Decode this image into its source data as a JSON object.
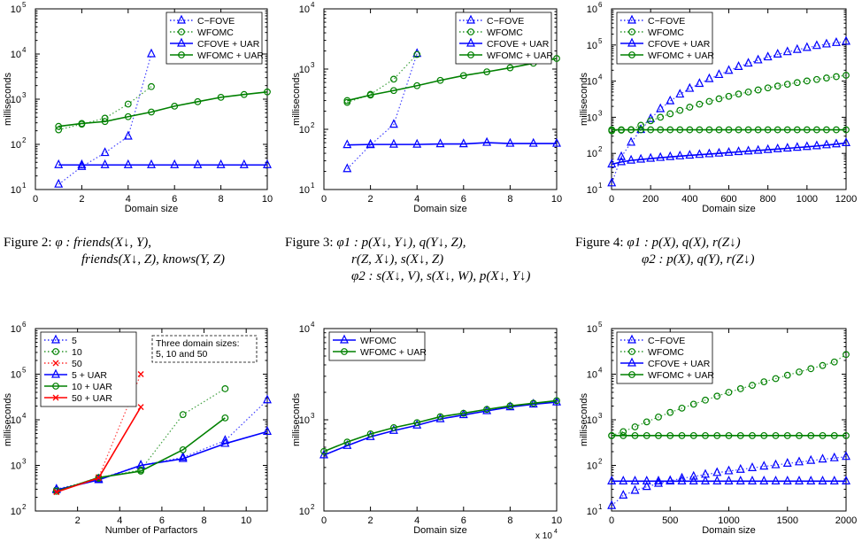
{
  "captions": [
    {
      "label": "Figure 2:",
      "lines": [
        "φ :  friends(X↓, Y),",
        "friends(X↓, Z), knows(Y, Z)"
      ]
    },
    {
      "label": "Figure 3:",
      "lines": [
        "φ1 :  p(X↓, Y↓), q(Y↓, Z),",
        "r(Z, X↓), s(X↓, Z)",
        "φ2 :  s(X↓, V), s(X↓, W), p(X↓, Y↓)"
      ]
    },
    {
      "label": "Figure 4:",
      "lines": [
        "φ1 :  p(X), q(X), r(Z↓)",
        "φ2 :  p(X), q(Y), r(Z↓)"
      ]
    }
  ],
  "chart_data": [
    {
      "type": "line",
      "xlabel": "Domain size",
      "ylabel": "milliseconds",
      "xlim": [
        0,
        10
      ],
      "ylim_exp": [
        1,
        5
      ],
      "yscale": "log",
      "xticks": [
        0,
        2,
        4,
        6,
        8,
        10
      ],
      "xtick_labels": [
        "0",
        "2",
        "4",
        "6",
        "8",
        "10"
      ],
      "legend": "top-right",
      "series": [
        {
          "name": "C−FOVE",
          "style": "dotted",
          "marker": "triangle",
          "color": "#0000ff",
          "x": [
            1,
            2,
            3,
            4,
            5
          ],
          "y": [
            13,
            32,
            65,
            150,
            10000
          ]
        },
        {
          "name": "WFOMC",
          "style": "dotted",
          "marker": "circle",
          "color": "#008000",
          "x": [
            1,
            2,
            3,
            4,
            5
          ],
          "y": [
            210,
            280,
            380,
            780,
            1900
          ]
        },
        {
          "name": "CFOVE + UAR",
          "style": "solid",
          "marker": "triangle",
          "color": "#0000ff",
          "x": [
            1,
            2,
            3,
            4,
            5,
            6,
            7,
            8,
            9,
            10
          ],
          "y": [
            35,
            35,
            35,
            35,
            35,
            35,
            35,
            35,
            35,
            35
          ]
        },
        {
          "name": "WFOMC + UAR",
          "style": "solid",
          "marker": "circle",
          "color": "#008000",
          "x": [
            1,
            2,
            3,
            4,
            5,
            6,
            7,
            8,
            9,
            10
          ],
          "y": [
            250,
            290,
            320,
            410,
            520,
            700,
            880,
            1100,
            1270,
            1450
          ]
        }
      ]
    },
    {
      "type": "line",
      "xlabel": "Domain size",
      "ylabel": "milliseconds",
      "xlim": [
        0,
        10
      ],
      "ylim_exp": [
        1,
        4
      ],
      "yscale": "log",
      "xticks": [
        0,
        2,
        4,
        6,
        8,
        10
      ],
      "xtick_labels": [
        "0",
        "2",
        "4",
        "6",
        "8",
        "10"
      ],
      "legend": "top-right",
      "series": [
        {
          "name": "C−FOVE",
          "style": "dotted",
          "marker": "triangle",
          "color": "#0000ff",
          "x": [
            1,
            2,
            3,
            4
          ],
          "y": [
            22,
            55,
            120,
            1800
          ]
        },
        {
          "name": "WFOMC",
          "style": "dotted",
          "marker": "circle",
          "color": "#008000",
          "x": [
            1,
            2,
            3,
            4
          ],
          "y": [
            280,
            380,
            680,
            1750
          ]
        },
        {
          "name": "CFOVE + UAR",
          "style": "solid",
          "marker": "triangle",
          "color": "#0000ff",
          "x": [
            1,
            2,
            3,
            4,
            5,
            6,
            7,
            8,
            9,
            10
          ],
          "y": [
            55,
            56,
            56,
            56,
            57,
            57,
            60,
            58,
            58,
            58
          ]
        },
        {
          "name": "WFOMC + UAR",
          "style": "solid",
          "marker": "circle",
          "color": "#008000",
          "x": [
            1,
            2,
            3,
            4,
            5,
            6,
            7,
            8,
            9,
            10
          ],
          "y": [
            300,
            370,
            440,
            530,
            650,
            780,
            900,
            1050,
            1250,
            1500
          ]
        }
      ]
    },
    {
      "type": "line",
      "xlabel": "Domain size",
      "ylabel": "milliseconds",
      "xlim": [
        0,
        1200
      ],
      "ylim_exp": [
        1,
        6
      ],
      "yscale": "log",
      "xticks": [
        0,
        200,
        400,
        600,
        800,
        1000,
        1200
      ],
      "xtick_labels": [
        "0",
        "200",
        "400",
        "600",
        "800",
        "1000",
        "1200"
      ],
      "legend": "top-left",
      "series": [
        {
          "name": "C−FOVE",
          "style": "dotted",
          "marker": "triangle",
          "color": "#0000ff",
          "x": [
            1,
            50,
            100,
            150,
            200,
            250,
            300,
            350,
            400,
            450,
            500,
            550,
            600,
            650,
            700,
            750,
            800,
            850,
            900,
            950,
            1000,
            1050,
            1100,
            1150,
            1200
          ],
          "y": [
            15,
            80,
            200,
            450,
            900,
            1700,
            2800,
            4300,
            6200,
            8500,
            11500,
            15000,
            19500,
            25000,
            31000,
            38000,
            46000,
            55000,
            64000,
            74000,
            84000,
            95000,
            105000,
            115000,
            125000
          ]
        },
        {
          "name": "WFOMC",
          "style": "dotted",
          "marker": "circle",
          "color": "#008000",
          "x": [
            1,
            50,
            100,
            150,
            200,
            250,
            300,
            350,
            400,
            450,
            500,
            550,
            600,
            650,
            700,
            750,
            800,
            850,
            900,
            950,
            1000,
            1050,
            1100,
            1150,
            1200
          ],
          "y": [
            420,
            440,
            450,
            600,
            800,
            1000,
            1250,
            1550,
            1900,
            2300,
            2750,
            3250,
            3800,
            4400,
            5000,
            5700,
            6500,
            7300,
            8200,
            9100,
            10100,
            11100,
            12200,
            13300,
            14500
          ]
        },
        {
          "name": "CFOVE + UAR",
          "style": "solid",
          "marker": "triangle",
          "color": "#0000ff",
          "x": [
            1,
            50,
            100,
            150,
            200,
            250,
            300,
            350,
            400,
            450,
            500,
            550,
            600,
            650,
            700,
            750,
            800,
            850,
            900,
            950,
            1000,
            1050,
            1100,
            1150,
            1200
          ],
          "y": [
            50,
            58,
            64,
            68,
            72,
            76,
            80,
            84,
            88,
            92,
            96,
            100,
            105,
            110,
            115,
            120,
            126,
            132,
            138,
            145,
            152,
            160,
            170,
            180,
            195
          ]
        },
        {
          "name": "WFOMC + UAR",
          "style": "solid",
          "marker": "circle",
          "color": "#008000",
          "x": [
            1,
            50,
            100,
            150,
            200,
            250,
            300,
            350,
            400,
            450,
            500,
            550,
            600,
            650,
            700,
            750,
            800,
            850,
            900,
            950,
            1000,
            1050,
            1100,
            1150,
            1200
          ],
          "y": [
            450,
            450,
            450,
            450,
            450,
            450,
            450,
            450,
            450,
            450,
            450,
            450,
            450,
            450,
            450,
            450,
            450,
            450,
            450,
            450,
            450,
            450,
            450,
            450,
            450
          ]
        }
      ]
    },
    {
      "type": "line",
      "xlabel": "Number of Parfactors",
      "ylabel": "milliseconds",
      "xlim": [
        0,
        11
      ],
      "ylim_exp": [
        2,
        6
      ],
      "yscale": "log",
      "xticks": [
        2,
        4,
        6,
        8,
        10
      ],
      "xtick_labels": [
        "2",
        "4",
        "6",
        "8",
        "10"
      ],
      "legend": "top-left",
      "annotation": [
        "Three domain sizes:",
        "5, 10 and 50"
      ],
      "series": [
        {
          "name": "5",
          "style": "dotted",
          "marker": "triangle",
          "color": "#0000ff",
          "x": [
            1,
            3,
            5,
            7,
            9,
            11
          ],
          "y": [
            300,
            500,
            1000,
            1500,
            3500,
            27000
          ]
        },
        {
          "name": "10",
          "style": "dotted",
          "marker": "circle",
          "color": "#008000",
          "x": [
            1,
            3,
            5,
            7,
            9
          ],
          "y": [
            290,
            520,
            800,
            13000,
            48000
          ]
        },
        {
          "name": "50",
          "style": "dotted",
          "marker": "cross",
          "color": "#ff0000",
          "x": [
            1,
            3,
            5
          ],
          "y": [
            270,
            550,
            100000
          ]
        },
        {
          "name": "5 + UAR",
          "style": "solid",
          "marker": "triangle",
          "color": "#0000ff",
          "x": [
            1,
            3,
            5,
            7,
            9,
            11
          ],
          "y": [
            290,
            480,
            1000,
            1400,
            3000,
            5500
          ]
        },
        {
          "name": "10 + UAR",
          "style": "solid",
          "marker": "circle",
          "color": "#008000",
          "x": [
            1,
            3,
            5,
            7,
            9
          ],
          "y": [
            270,
            540,
            750,
            2200,
            11000
          ]
        },
        {
          "name": "50 + UAR",
          "style": "solid",
          "marker": "cross",
          "color": "#ff0000",
          "x": [
            1,
            3,
            5
          ],
          "y": [
            260,
            530,
            19000
          ]
        }
      ]
    },
    {
      "type": "line",
      "xlabel": "Domain size",
      "ylabel": "milliseconds",
      "xlim": [
        0,
        100000
      ],
      "ylim_exp": [
        2,
        4
      ],
      "yscale": "log",
      "xticks": [
        0,
        20000,
        40000,
        60000,
        80000,
        100000
      ],
      "xtick_labels": [
        "0",
        "2",
        "4",
        "6",
        "8",
        "10"
      ],
      "xmultiplier": "x 10",
      "xmultiplier_exp": "4",
      "legend": "top-left",
      "series": [
        {
          "name": "WFOMC",
          "style": "solid",
          "marker": "triangle",
          "color": "#0000ff",
          "x": [
            0,
            10000,
            20000,
            30000,
            40000,
            50000,
            60000,
            70000,
            80000,
            90000,
            100000
          ],
          "y": [
            410,
            520,
            650,
            760,
            870,
            1020,
            1130,
            1250,
            1380,
            1480,
            1560
          ]
        },
        {
          "name": "WFOMC + UAR",
          "style": "solid",
          "marker": "circle",
          "color": "#008000",
          "x": [
            0,
            10000,
            20000,
            30000,
            40000,
            50000,
            60000,
            70000,
            80000,
            90000,
            100000
          ],
          "y": [
            450,
            570,
            700,
            820,
            930,
            1080,
            1180,
            1300,
            1420,
            1520,
            1620
          ]
        }
      ]
    },
    {
      "type": "line",
      "xlabel": "Domain size",
      "ylabel": "milliseconds",
      "xlim": [
        0,
        2000
      ],
      "ylim_exp": [
        1,
        5
      ],
      "yscale": "log",
      "xticks": [
        0,
        500,
        1000,
        1500,
        2000
      ],
      "xtick_labels": [
        "0",
        "500",
        "1000",
        "1500",
        "2000"
      ],
      "legend": "top-left",
      "series": [
        {
          "name": "C−FOVE",
          "style": "dotted",
          "marker": "triangle",
          "color": "#0000ff",
          "x": [
            1,
            100,
            200,
            300,
            400,
            500,
            600,
            700,
            800,
            900,
            1000,
            1100,
            1200,
            1300,
            1400,
            1500,
            1600,
            1700,
            1800,
            1900,
            2000
          ],
          "y": [
            13,
            22,
            28,
            34,
            40,
            46,
            52,
            57,
            63,
            69,
            75,
            81,
            88,
            95,
            102,
            110,
            118,
            127,
            136,
            145,
            155
          ]
        },
        {
          "name": "WFOMC",
          "style": "dotted",
          "marker": "circle",
          "color": "#008000",
          "x": [
            1,
            100,
            200,
            300,
            400,
            500,
            600,
            700,
            800,
            900,
            1000,
            1100,
            1200,
            1300,
            1400,
            1500,
            1600,
            1700,
            1800,
            1900,
            2000
          ],
          "y": [
            450,
            550,
            700,
            900,
            1150,
            1450,
            1800,
            2200,
            2700,
            3300,
            4000,
            4800,
            5700,
            6800,
            8000,
            9500,
            11200,
            13200,
            15500,
            18500,
            27000
          ]
        },
        {
          "name": "CFOVE + UAR",
          "style": "solid",
          "marker": "triangle",
          "color": "#0000ff",
          "x": [
            1,
            100,
            200,
            300,
            400,
            500,
            600,
            700,
            800,
            900,
            1000,
            1100,
            1200,
            1300,
            1400,
            1500,
            1600,
            1700,
            1800,
            1900,
            2000
          ],
          "y": [
            45,
            45,
            45,
            45,
            45,
            45,
            45,
            45,
            45,
            45,
            45,
            45,
            45,
            45,
            45,
            45,
            45,
            45,
            45,
            45,
            45
          ]
        },
        {
          "name": "WFOMC + UAR",
          "style": "solid",
          "marker": "circle",
          "color": "#008000",
          "x": [
            1,
            100,
            200,
            300,
            400,
            500,
            600,
            700,
            800,
            900,
            1000,
            1100,
            1200,
            1300,
            1400,
            1500,
            1600,
            1700,
            1800,
            1900,
            2000
          ],
          "y": [
            450,
            450,
            450,
            450,
            450,
            450,
            450,
            450,
            450,
            450,
            450,
            450,
            450,
            450,
            450,
            450,
            450,
            450,
            450,
            450,
            450
          ]
        }
      ]
    }
  ]
}
